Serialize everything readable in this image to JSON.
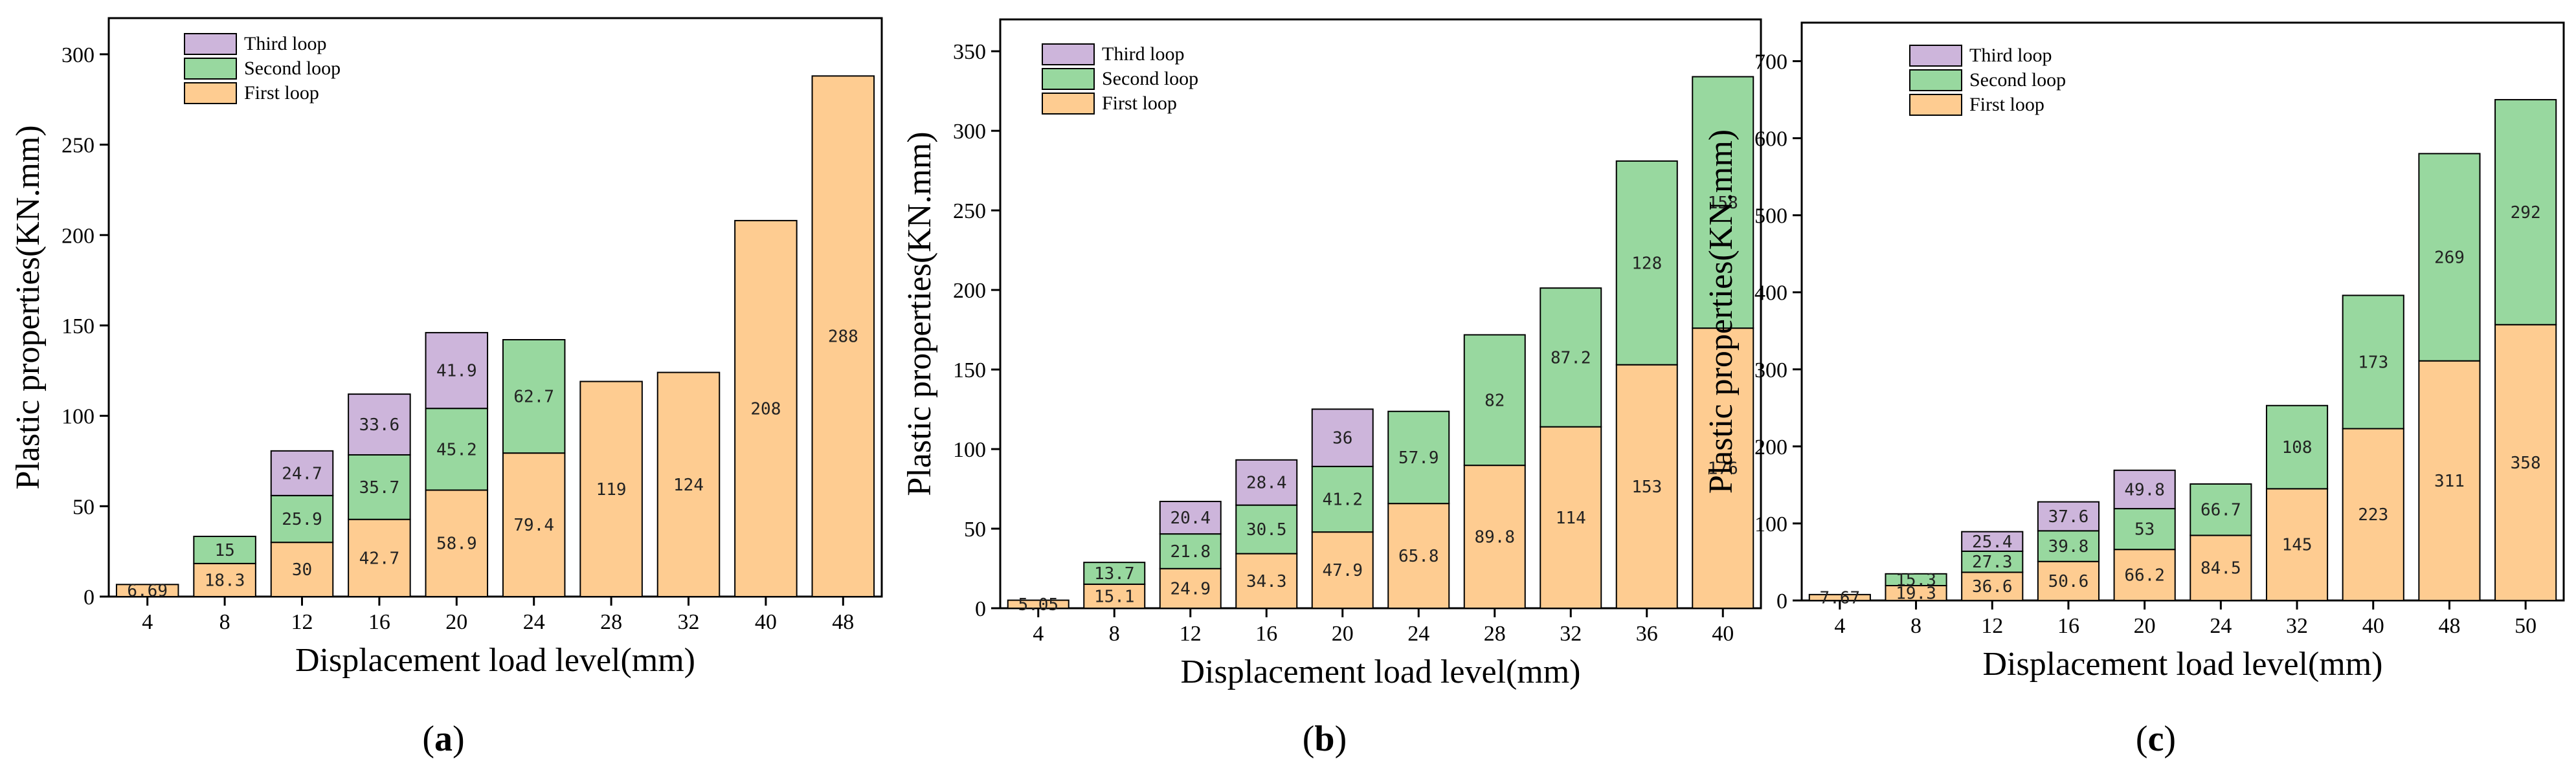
{
  "chart_data": [
    {
      "type": "bar",
      "stacked": true,
      "panel_label": "a",
      "xlabel": "Displacement load level(mm)",
      "ylabel": "Plastic properties(KN.mm)",
      "ylim": [
        0,
        320
      ],
      "yticks": [
        0,
        50,
        100,
        150,
        200,
        250,
        300
      ],
      "categories": [
        "4",
        "8",
        "12",
        "16",
        "20",
        "24",
        "28",
        "32",
        "40",
        "48"
      ],
      "legend_position": "top-left",
      "series": [
        {
          "name": "First loop",
          "color": "#FECC91",
          "values": [
            6.69,
            18.3,
            30,
            42.7,
            58.9,
            79.4,
            119,
            124,
            208,
            288
          ]
        },
        {
          "name": "Second loop",
          "color": "#98D89F",
          "values": [
            null,
            15,
            25.9,
            35.7,
            45.2,
            62.7,
            null,
            null,
            null,
            null
          ]
        },
        {
          "name": "Third loop",
          "color": "#CDB5DB",
          "values": [
            null,
            null,
            24.7,
            33.6,
            41.9,
            null,
            null,
            null,
            null,
            null
          ]
        }
      ]
    },
    {
      "type": "bar",
      "stacked": true,
      "panel_label": "b",
      "xlabel": "Displacement load level(mm)",
      "ylabel": "Plastic properties(KN.mm)",
      "ylim": [
        0,
        370
      ],
      "yticks": [
        0,
        50,
        100,
        150,
        200,
        250,
        300,
        350
      ],
      "categories": [
        "4",
        "8",
        "12",
        "16",
        "20",
        "24",
        "28",
        "32",
        "36",
        "40"
      ],
      "legend_position": "top-left",
      "series": [
        {
          "name": "First loop",
          "color": "#FECC91",
          "values": [
            5.05,
            15.1,
            24.9,
            34.3,
            47.9,
            65.8,
            89.8,
            114,
            153,
            176
          ]
        },
        {
          "name": "Second loop",
          "color": "#98D89F",
          "values": [
            null,
            13.7,
            21.8,
            30.5,
            41.2,
            57.9,
            82,
            87.2,
            128,
            158
          ]
        },
        {
          "name": "Third loop",
          "color": "#CDB5DB",
          "values": [
            null,
            null,
            20.4,
            28.4,
            36,
            null,
            null,
            null,
            null,
            null
          ]
        }
      ]
    },
    {
      "type": "bar",
      "stacked": true,
      "panel_label": "c",
      "xlabel": "Displacement load level(mm)",
      "ylabel": "Plastic properties(KN.mm)",
      "ylim": [
        0,
        750
      ],
      "yticks": [
        0,
        100,
        200,
        300,
        400,
        500,
        600,
        700
      ],
      "categories": [
        "4",
        "8",
        "12",
        "16",
        "20",
        "24",
        "32",
        "40",
        "48",
        "50"
      ],
      "legend_position": "top-left",
      "series": [
        {
          "name": "First loop",
          "color": "#FECC91",
          "values": [
            7.67,
            19.3,
            36.6,
            50.6,
            66.2,
            84.5,
            145,
            223,
            311,
            358
          ]
        },
        {
          "name": "Second loop",
          "color": "#98D89F",
          "values": [
            null,
            15.3,
            27.3,
            39.8,
            53,
            66.7,
            108,
            173,
            269,
            292
          ]
        },
        {
          "name": "Third loop",
          "color": "#CDB5DB",
          "values": [
            null,
            null,
            25.4,
            37.6,
            49.8,
            null,
            null,
            null,
            null,
            null
          ]
        }
      ]
    }
  ]
}
